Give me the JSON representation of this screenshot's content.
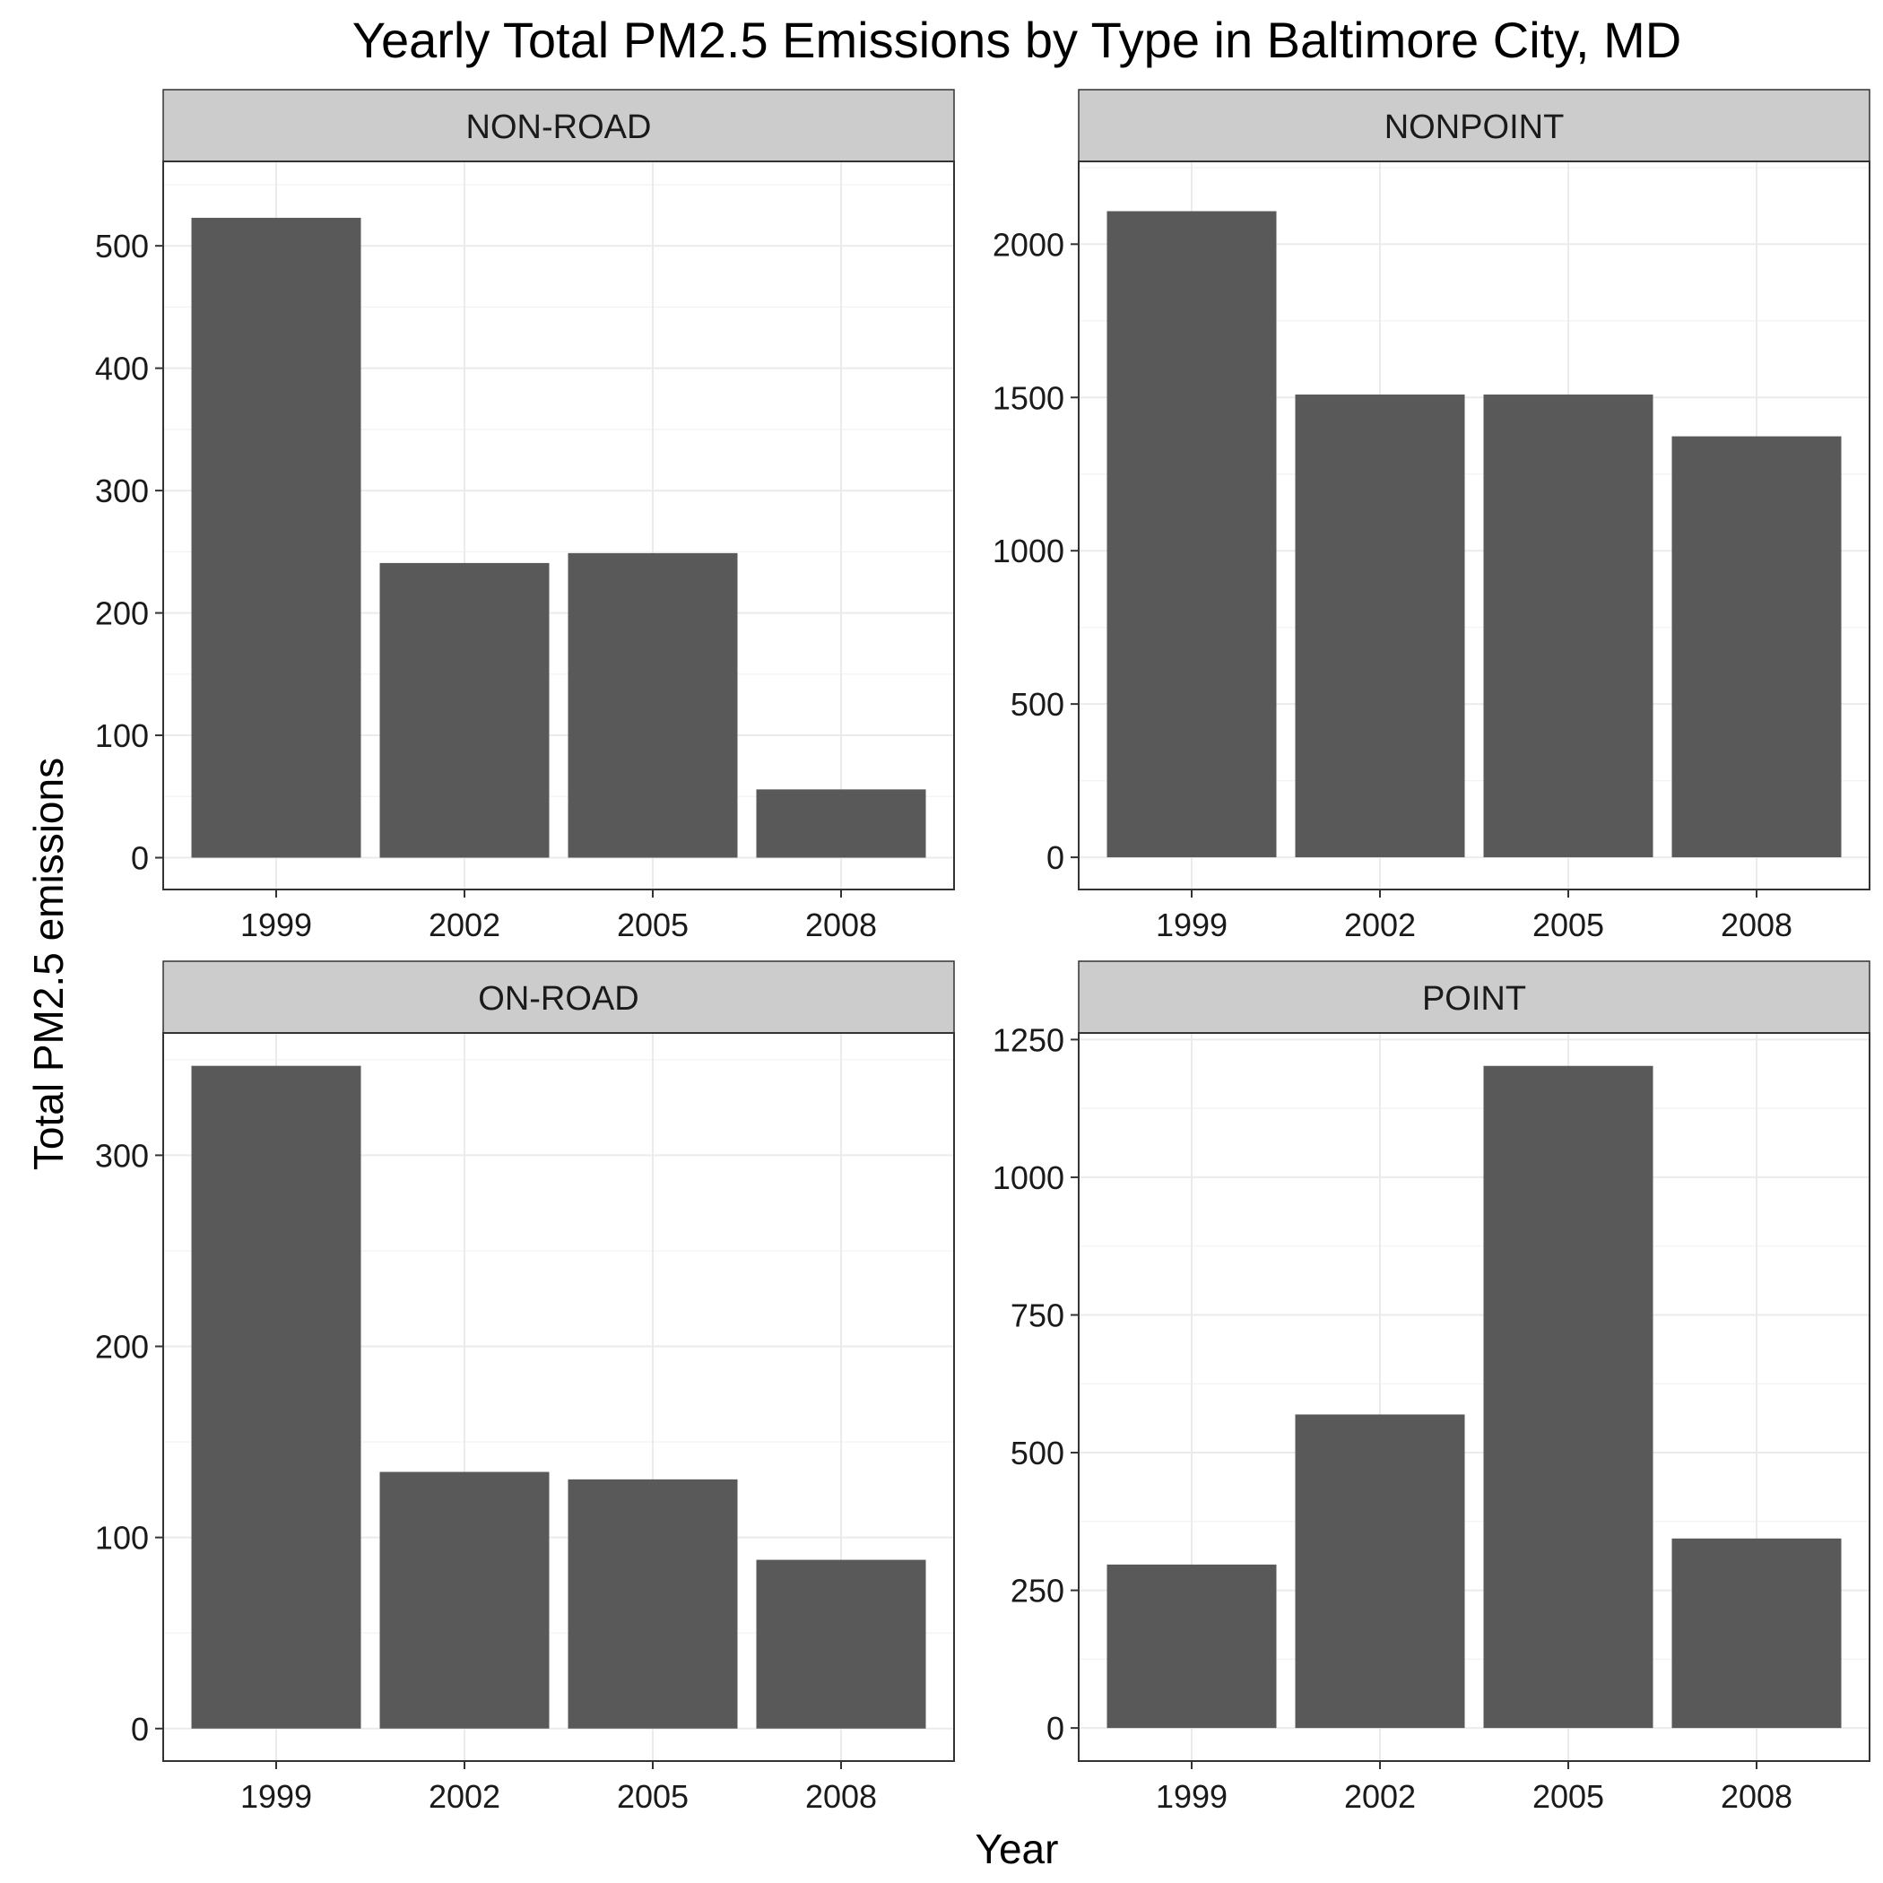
{
  "chart_data": {
    "type": "bar",
    "title": "Yearly Total PM2.5 Emissions by Type in Baltimore City, MD",
    "xlabel": "Year",
    "ylabel": "Total PM2.5 emissions",
    "grid": true,
    "legend": "none",
    "bar_color": "#595959",
    "strip_color": "#cccccc",
    "panels": [
      {
        "name": "NON-ROAD",
        "categories": [
          "1999",
          "2002",
          "2005",
          "2008"
        ],
        "values": [
          522.9,
          240.8,
          248.9,
          55.8
        ],
        "ylim": [
          -26,
          569
        ],
        "yticks": [
          0,
          100,
          200,
          300,
          400,
          500
        ],
        "ytick_labels": [
          "0",
          "100",
          "200",
          "300",
          "400",
          "500"
        ]
      },
      {
        "name": "NONPOINT",
        "categories": [
          "1999",
          "2002",
          "2005",
          "2008"
        ],
        "values": [
          2107.6,
          1509.5,
          1509.5,
          1373.2
        ],
        "ylim": [
          -105,
          2270
        ],
        "yticks": [
          0,
          500,
          1000,
          1500,
          2000
        ],
        "ytick_labels": [
          "0",
          "500",
          "1000",
          "1500",
          "2000"
        ]
      },
      {
        "name": "ON-ROAD",
        "categories": [
          "1999",
          "2002",
          "2005",
          "2008"
        ],
        "values": [
          346.8,
          134.3,
          130.4,
          88.3
        ],
        "ylim": [
          -17,
          364
        ],
        "yticks": [
          0,
          100,
          200,
          300
        ],
        "ytick_labels": [
          "0",
          "100",
          "200",
          "300"
        ]
      },
      {
        "name": "POINT",
        "categories": [
          "1999",
          "2002",
          "2005",
          "2008"
        ],
        "values": [
          296.8,
          569.3,
          1202.2,
          344.1
        ],
        "ylim": [
          -60,
          1262
        ],
        "yticks": [
          0,
          250,
          500,
          750,
          1000,
          1250
        ],
        "ytick_labels": [
          "0",
          "250",
          "500",
          "750",
          "1000",
          "1250"
        ]
      }
    ]
  }
}
